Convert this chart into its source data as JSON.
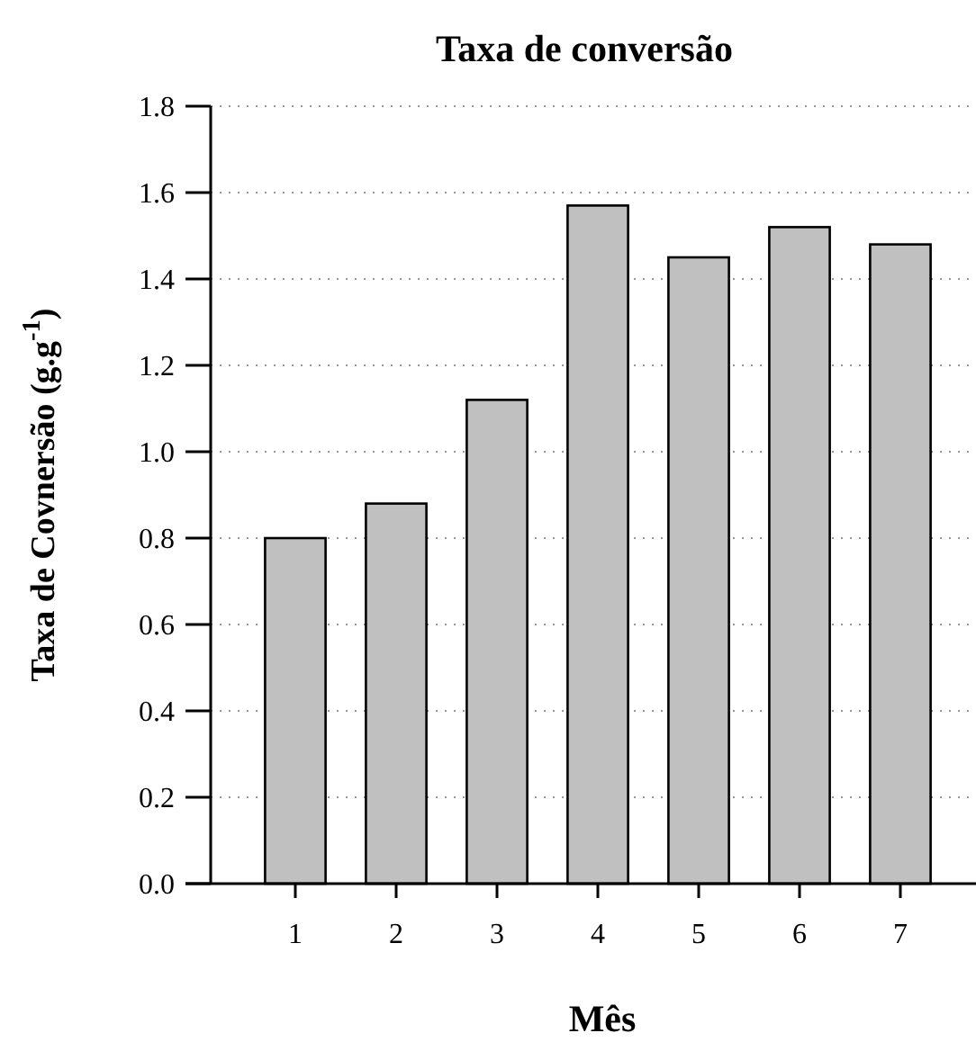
{
  "chart_data": {
    "type": "bar",
    "title": "Taxa de conversão",
    "xlabel": "Mês",
    "ylabel": "Taxa de Covnersão (g.g$^{-1}$)",
    "categories": [
      "1",
      "2",
      "3",
      "4",
      "5",
      "6",
      "7"
    ],
    "values": [
      0.8,
      0.88,
      1.12,
      1.57,
      1.45,
      1.52,
      1.48
    ],
    "color": "#c0c0c0",
    "ylim": [
      0,
      1.8
    ],
    "yticks": [
      {
        "value": 0,
        "label": "0.0"
      },
      0.2,
      0.4,
      0.6,
      0.8,
      {
        "value": 1,
        "label": "1.0"
      },
      1.2,
      1.4,
      1.6,
      1.8
    ],
    "grid": "y"
  }
}
